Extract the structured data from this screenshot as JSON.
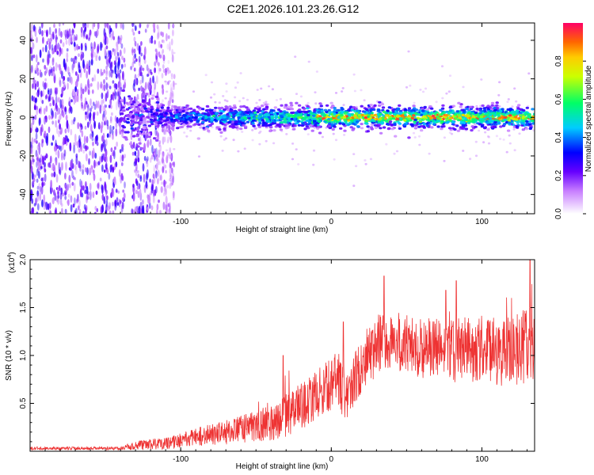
{
  "title": "C2E1.2026.101.23.26.G12",
  "chart_data": [
    {
      "type": "heatmap",
      "xlabel": "Height of straight line (km)",
      "ylabel": "Frequency (Hz)",
      "xlim": [
        -200,
        135
      ],
      "ylim": [
        -50,
        49
      ],
      "xticks": [
        -100,
        0,
        100
      ],
      "yticks": [
        -40,
        -20,
        0,
        20,
        40
      ],
      "colorbar": {
        "label": "Normalized spectral amplitude",
        "range": [
          0,
          1
        ],
        "ticks": [
          "0.0",
          "0.2",
          "0.4",
          "0.6",
          "0.8"
        ]
      },
      "description_values": {
        "noise_region_x": [
          -200,
          -112
        ],
        "gap_x": [
          -137,
          -133
        ],
        "signal_band_hz": [
          -5,
          5
        ],
        "peak_region_x": [
          -10,
          130
        ],
        "peak_amplitude": 0.95
      }
    },
    {
      "type": "line",
      "xlabel": "Height of straight line (km)",
      "ylabel": "SNR (10 * v/v)",
      "y_scale_label": "(x10",
      "y_scale_exp": "4",
      "y_scale_suffix": ")",
      "xlim": [
        -200,
        135
      ],
      "ylim": [
        0,
        2.0
      ],
      "xticks": [
        -100,
        0,
        100
      ],
      "yticks": [
        "0.5",
        "1.0",
        "1.5",
        "2.0"
      ],
      "series_color": "#ee3333",
      "trend": {
        "x": [
          -200,
          -140,
          -130,
          -110,
          -90,
          -70,
          -50,
          -35,
          -25,
          -15,
          -5,
          5,
          10,
          20,
          30,
          40,
          60,
          80,
          100,
          115,
          130
        ],
        "y": [
          0.03,
          0.03,
          0.06,
          0.08,
          0.15,
          0.2,
          0.26,
          0.33,
          0.42,
          0.52,
          0.65,
          0.75,
          0.55,
          0.9,
          1.1,
          1.15,
          1.08,
          1.05,
          1.08,
          1.02,
          1.1
        ]
      },
      "noise": {
        "x": [
          -200,
          -140,
          -130,
          -110,
          -90,
          -70,
          -50,
          -30,
          -10,
          10,
          30,
          60,
          100,
          135
        ],
        "amp": [
          0.01,
          0.01,
          0.03,
          0.04,
          0.06,
          0.08,
          0.1,
          0.14,
          0.16,
          0.18,
          0.2,
          0.2,
          0.22,
          0.25
        ]
      },
      "spikes": [
        {
          "x": 35,
          "y": 1.83
        },
        {
          "x": 8,
          "y": 1.35
        },
        {
          "x": 83,
          "y": 1.78
        },
        {
          "x": 132,
          "y": 2.0
        },
        {
          "x": -32,
          "y": 1.0
        },
        {
          "x": 76,
          "y": 1.68
        }
      ]
    }
  ]
}
